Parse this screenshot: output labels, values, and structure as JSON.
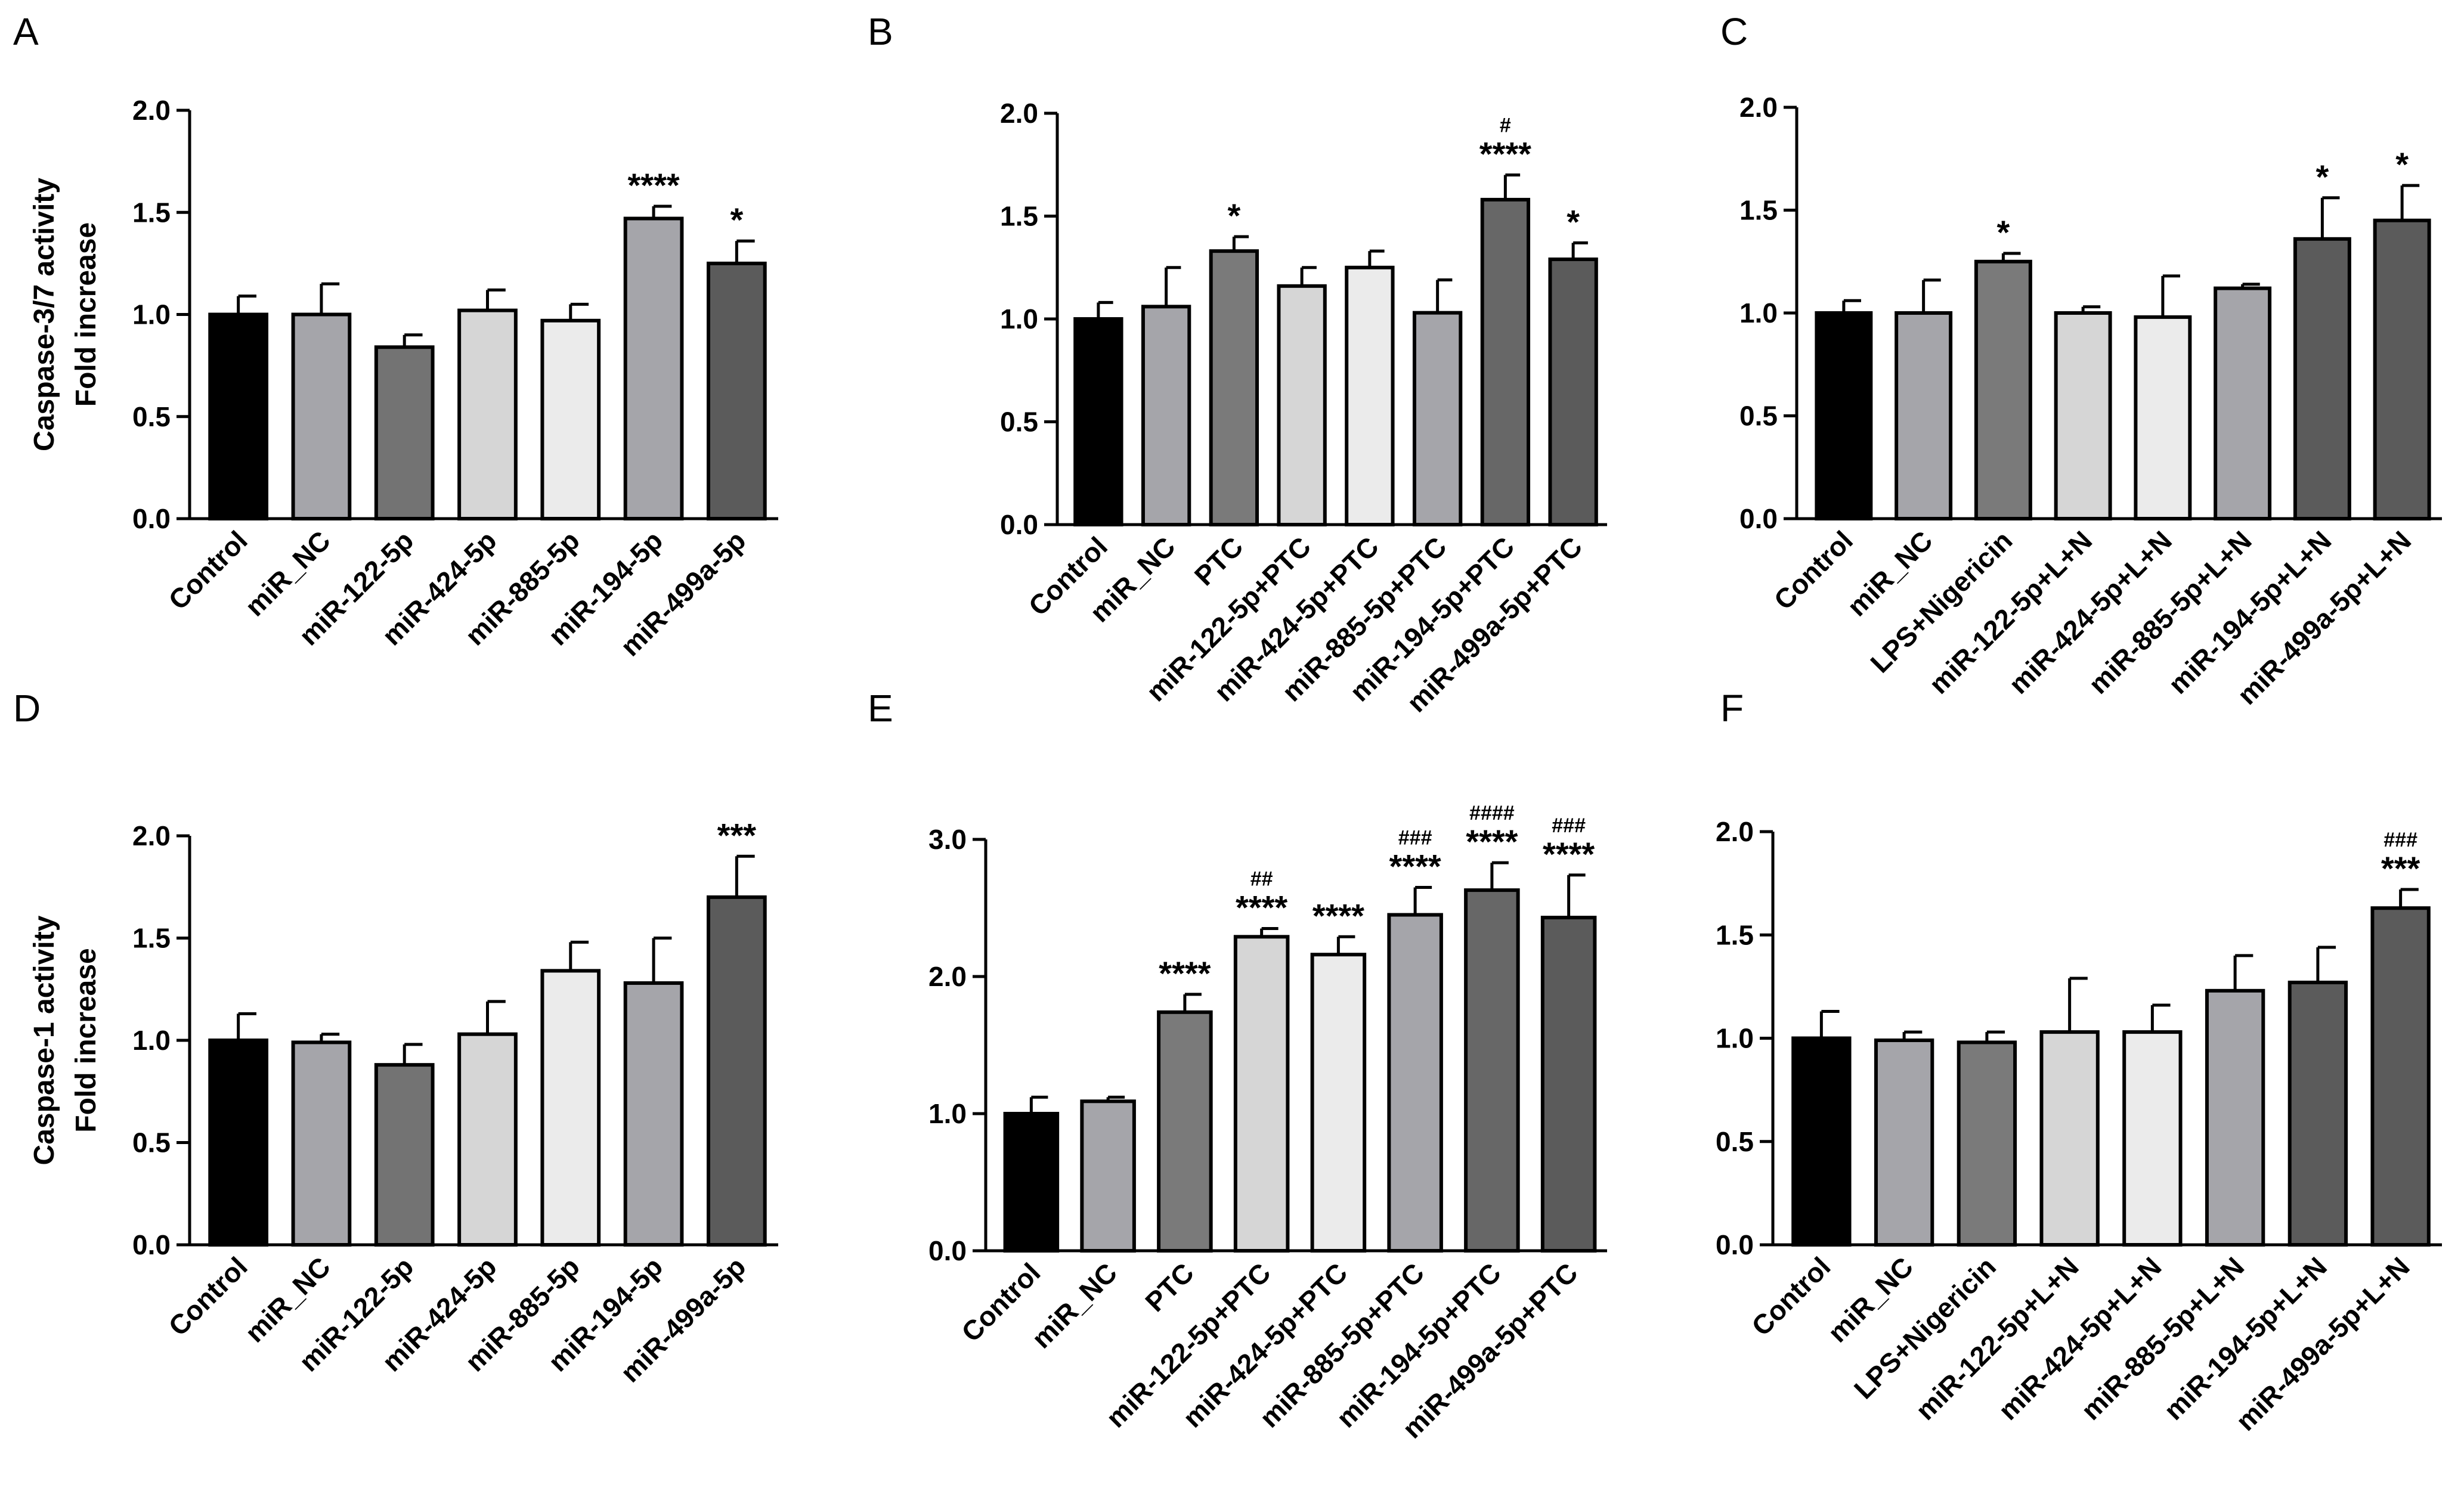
{
  "chart_data": [
    {
      "panel": "A",
      "type": "bar",
      "ylabel": [
        "Caspase-3/7 activity",
        "Fold increase"
      ],
      "ylim": [
        0,
        2.0
      ],
      "yticks": [
        0.0,
        0.5,
        1.0,
        1.5,
        2.0
      ],
      "ytick_labels": [
        "0.0",
        "0.5",
        "1.0",
        "1.5",
        "2.0"
      ],
      "categories": [
        "Control",
        "miR_NC",
        "miR-122-5p",
        "miR-424-5p",
        "miR-885-5p",
        "miR-194-5p",
        "miR-499a-5p"
      ],
      "values": [
        1.0,
        1.0,
        0.84,
        1.02,
        0.97,
        1.47,
        1.25
      ],
      "errors": [
        0.09,
        0.15,
        0.06,
        0.1,
        0.08,
        0.06,
        0.11
      ],
      "annotations": [
        "",
        "",
        "",
        "",
        "",
        "****",
        "*"
      ],
      "annotations2": [
        "",
        "",
        "",
        "",
        "",
        "",
        ""
      ],
      "colors": [
        "#000000",
        "#a5a5aa",
        "#737373",
        "#d6d6d6",
        "#ebebeb",
        "#a5a5aa",
        "#5b5b5b"
      ]
    },
    {
      "panel": "B",
      "type": "bar",
      "ylabel": [],
      "ylim": [
        0,
        2.0
      ],
      "yticks": [
        0.0,
        0.5,
        1.0,
        1.5,
        2.0
      ],
      "ytick_labels": [
        "0.0",
        "0.5",
        "1.0",
        "1.5",
        "2.0"
      ],
      "categories": [
        "Control",
        "miR_NC",
        "PTC",
        "miR-122-5p+PTC",
        "miR-424-5p+PTC",
        "miR-885-5p+PTC",
        "miR-194-5p+PTC",
        "miR-499a-5p+PTC"
      ],
      "values": [
        1.0,
        1.06,
        1.33,
        1.16,
        1.25,
        1.03,
        1.58,
        1.29
      ],
      "errors": [
        0.08,
        0.19,
        0.07,
        0.09,
        0.08,
        0.16,
        0.12,
        0.08
      ],
      "annotations": [
        "",
        "",
        "*",
        "",
        "",
        "",
        "****",
        "*"
      ],
      "annotations2": [
        "",
        "",
        "",
        "",
        "",
        "",
        "#",
        ""
      ],
      "colors": [
        "#000000",
        "#a5a5aa",
        "#7a7a7a",
        "#d6d6d6",
        "#ebebeb",
        "#a5a5aa",
        "#676767",
        "#5b5b5b"
      ]
    },
    {
      "panel": "C",
      "type": "bar",
      "ylabel": [],
      "ylim": [
        0,
        2.0
      ],
      "yticks": [
        0.0,
        0.5,
        1.0,
        1.5,
        2.0
      ],
      "ytick_labels": [
        "0.0",
        "0.5",
        "1.0",
        "1.5",
        "2.0"
      ],
      "categories": [
        "Control",
        "miR_NC",
        "LPS+Nigericin",
        "miR-122-5p+L+N",
        "miR-424-5p+L+N",
        "miR-885-5p+L+N",
        "miR-194-5p+L+N",
        "miR-499a-5p+L+N"
      ],
      "values": [
        1.0,
        1.0,
        1.25,
        1.0,
        0.98,
        1.12,
        1.36,
        1.45
      ],
      "errors": [
        0.06,
        0.16,
        0.04,
        0.03,
        0.2,
        0.02,
        0.2,
        0.17
      ],
      "annotations": [
        "",
        "",
        "*",
        "",
        "",
        "",
        "*",
        "*"
      ],
      "annotations2": [
        "",
        "",
        "",
        "",
        "",
        "",
        "",
        ""
      ],
      "colors": [
        "#000000",
        "#a5a5aa",
        "#7a7a7a",
        "#d6d6d6",
        "#ebebeb",
        "#a5a5aa",
        "#5b5b5b",
        "#5b5b5b"
      ]
    },
    {
      "panel": "D",
      "type": "bar",
      "ylabel": [
        "Caspase-1 activity",
        "Fold increase"
      ],
      "ylim": [
        0,
        2.0
      ],
      "yticks": [
        0.0,
        0.5,
        1.0,
        1.5,
        2.0
      ],
      "ytick_labels": [
        "0.0",
        "0.5",
        "1.0",
        "1.5",
        "2.0"
      ],
      "categories": [
        "Control",
        "miR_NC",
        "miR-122-5p",
        "miR-424-5p",
        "miR-885-5p",
        "miR-194-5p",
        "miR-499a-5p"
      ],
      "values": [
        1.0,
        0.99,
        0.88,
        1.03,
        1.34,
        1.28,
        1.7
      ],
      "errors": [
        0.13,
        0.04,
        0.1,
        0.16,
        0.14,
        0.22,
        0.2
      ],
      "annotations": [
        "",
        "",
        "",
        "",
        "",
        "",
        "***"
      ],
      "annotations2": [
        "",
        "",
        "",
        "",
        "",
        "",
        ""
      ],
      "colors": [
        "#000000",
        "#a5a5aa",
        "#737373",
        "#d6d6d6",
        "#ebebeb",
        "#a5a5aa",
        "#5b5b5b"
      ]
    },
    {
      "panel": "E",
      "type": "bar",
      "ylabel": [],
      "ylim": [
        0,
        3.0
      ],
      "yticks": [
        0.0,
        1.0,
        2.0,
        3.0
      ],
      "ytick_labels": [
        "0.0",
        "1.0",
        "2.0",
        "3.0"
      ],
      "categories": [
        "Control",
        "miR_NC",
        "PTC",
        "miR-122-5p+PTC",
        "miR-424-5p+PTC",
        "miR-885-5p+PTC",
        "miR-194-5p+PTC",
        "miR-499a-5p+PTC"
      ],
      "values": [
        1.0,
        1.09,
        1.74,
        2.29,
        2.16,
        2.45,
        2.63,
        2.43
      ],
      "errors": [
        0.12,
        0.03,
        0.13,
        0.06,
        0.13,
        0.2,
        0.2,
        0.31
      ],
      "annotations": [
        "",
        "",
        "****",
        "****",
        "****",
        "****",
        "****",
        "****"
      ],
      "annotations2": [
        "",
        "",
        "",
        "##",
        "",
        "###",
        "####",
        "###"
      ],
      "colors": [
        "#000000",
        "#a5a5aa",
        "#7a7a7a",
        "#d6d6d6",
        "#ebebeb",
        "#a5a5aa",
        "#676767",
        "#5b5b5b"
      ]
    },
    {
      "panel": "F",
      "type": "bar",
      "ylabel": [],
      "ylim": [
        0,
        2.0
      ],
      "yticks": [
        0.0,
        0.5,
        1.0,
        1.5,
        2.0
      ],
      "ytick_labels": [
        "0.0",
        "0.5",
        "1.0",
        "1.5",
        "2.0"
      ],
      "categories": [
        "Control",
        "miR_NC",
        "LPS+Nigericin",
        "miR-122-5p+L+N",
        "miR-424-5p+L+N",
        "miR-885-5p+L+N",
        "miR-194-5p+L+N",
        "miR-499a-5p+L+N"
      ],
      "values": [
        1.0,
        0.99,
        0.98,
        1.03,
        1.03,
        1.23,
        1.27,
        1.63
      ],
      "errors": [
        0.13,
        0.04,
        0.05,
        0.26,
        0.13,
        0.17,
        0.17,
        0.09
      ],
      "annotations": [
        "",
        "",
        "",
        "",
        "",
        "",
        "",
        "***"
      ],
      "annotations2": [
        "",
        "",
        "",
        "",
        "",
        "",
        "",
        "###"
      ],
      "colors": [
        "#000000",
        "#a5a5aa",
        "#7a7a7a",
        "#d6d6d6",
        "#ebebeb",
        "#a5a5aa",
        "#5b5b5b",
        "#5b5b5b"
      ]
    }
  ]
}
